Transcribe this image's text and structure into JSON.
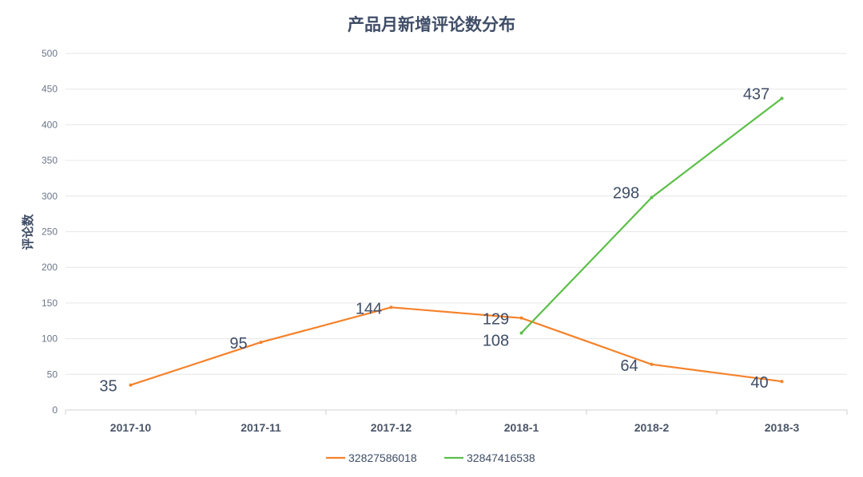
{
  "chart_data": {
    "type": "line",
    "title": "产品月新增评论数分布",
    "ylabel": "评论数",
    "xlabel": "",
    "ylim": [
      0,
      500
    ],
    "yticks": [
      0,
      50,
      100,
      150,
      200,
      250,
      300,
      350,
      400,
      450,
      500
    ],
    "categories": [
      "2017-10",
      "2017-11",
      "2017-12",
      "2018-1",
      "2018-2",
      "2018-3"
    ],
    "grid": true,
    "legend_position": "bottom",
    "series": [
      {
        "name": "32827586018",
        "color": "#f5822a",
        "values": [
          35,
          95,
          144,
          129,
          64,
          40
        ]
      },
      {
        "name": "32847416538",
        "color": "#5bbf48",
        "values": [
          null,
          null,
          null,
          108,
          298,
          437
        ]
      }
    ]
  }
}
